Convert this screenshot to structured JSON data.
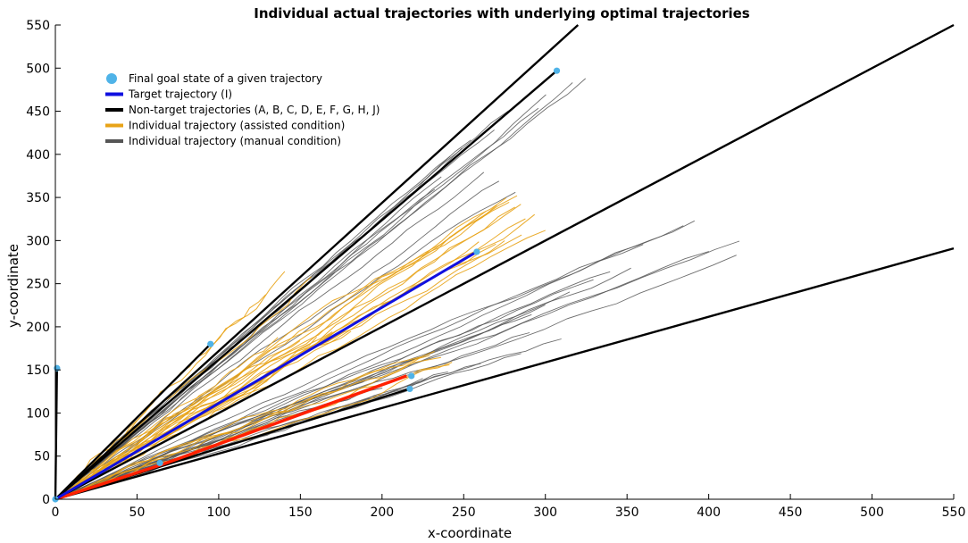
{
  "chart_data": {
    "type": "line",
    "title": "Individual actual trajectories with underlying optimal trajectories",
    "xlabel": "x-coordinate",
    "ylabel": "y-coordinate",
    "xlim": [
      0,
      550
    ],
    "ylim": [
      0,
      550
    ],
    "xticks": [
      0,
      50,
      100,
      150,
      200,
      250,
      300,
      350,
      400,
      450,
      500,
      550
    ],
    "yticks": [
      0,
      50,
      100,
      150,
      200,
      250,
      300,
      350,
      400,
      450,
      500,
      550
    ],
    "grid": false,
    "legend_position": "top-left",
    "legend": [
      {
        "label": "Final goal state of a given trajectory",
        "marker": "circle",
        "color": "#4fb3e8"
      },
      {
        "label": "Target trajectory (I)",
        "marker": "line",
        "color": "#1010e0"
      },
      {
        "label": "Non-target trajectories (A, B, C, D, E, F, G, H, J)",
        "marker": "line",
        "color": "#000000"
      },
      {
        "label": "Individual trajectory (assisted condition)",
        "marker": "line",
        "color": "#e8a317"
      },
      {
        "label": "Individual trajectory (manual condition)",
        "marker": "line",
        "color": "#555555"
      }
    ],
    "colors": {
      "goal": "#4fb3e8",
      "target": "#1010e0",
      "nontarget": "#000000",
      "assisted": "#e8a317",
      "manual": "#555555",
      "highlight": "#ff2000"
    },
    "optimal_trajectories": [
      {
        "x": [
          0,
          1
        ],
        "y": [
          0,
          152
        ]
      },
      {
        "x": [
          0,
          95
        ],
        "y": [
          0,
          180
        ]
      },
      {
        "x": [
          0,
          320
        ],
        "y": [
          0,
          550
        ]
      },
      {
        "x": [
          0,
          307
        ],
        "y": [
          0,
          497
        ]
      },
      {
        "x": [
          0,
          550
        ],
        "y": [
          0,
          550
        ]
      },
      {
        "x": [
          0,
          550
        ],
        "y": [
          0,
          291
        ]
      },
      {
        "x": [
          0,
          217
        ],
        "y": [
          0,
          128
        ]
      }
    ],
    "target_trajectory": {
      "x": [
        0,
        258
      ],
      "y": [
        0,
        287
      ]
    },
    "highlight_trajectory": {
      "x": [
        0,
        65,
        215
      ],
      "y": [
        0,
        40,
        143
      ]
    },
    "goal_states": [
      {
        "x": 1,
        "y": 152
      },
      {
        "x": 95,
        "y": 180
      },
      {
        "x": 307,
        "y": 497
      },
      {
        "x": 258,
        "y": 287
      },
      {
        "x": 217,
        "y": 128
      },
      {
        "x": 218,
        "y": 143
      },
      {
        "x": 64,
        "y": 42
      },
      {
        "x": 0,
        "y": 0
      }
    ],
    "manual_endpoints": [
      [
        325,
        487
      ],
      [
        318,
        480
      ],
      [
        300,
        470
      ],
      [
        295,
        455
      ],
      [
        280,
        445
      ],
      [
        268,
        430
      ],
      [
        253,
        420
      ],
      [
        250,
        405
      ],
      [
        243,
        395
      ],
      [
        262,
        380
      ],
      [
        272,
        368
      ],
      [
        282,
        355
      ],
      [
        238,
        370
      ],
      [
        232,
        360
      ],
      [
        392,
        320
      ],
      [
        385,
        315
      ],
      [
        420,
        293
      ],
      [
        400,
        288
      ],
      [
        417,
        283
      ],
      [
        360,
        295
      ],
      [
        352,
        270
      ],
      [
        340,
        262
      ],
      [
        330,
        252
      ],
      [
        315,
        240
      ],
      [
        300,
        225
      ],
      [
        292,
        212
      ],
      [
        290,
        195
      ],
      [
        310,
        185
      ],
      [
        285,
        170
      ],
      [
        260,
        160
      ],
      [
        240,
        150
      ],
      [
        225,
        140
      ],
      [
        200,
        130
      ],
      [
        180,
        120
      ],
      [
        160,
        112
      ]
    ],
    "assisted_endpoints": [
      [
        283,
        348
      ],
      [
        278,
        344
      ],
      [
        281,
        340
      ],
      [
        276,
        350
      ],
      [
        285,
        345
      ],
      [
        270,
        342
      ],
      [
        265,
        330
      ],
      [
        295,
        325
      ],
      [
        290,
        318
      ],
      [
        300,
        312
      ],
      [
        285,
        308
      ],
      [
        275,
        300
      ],
      [
        270,
        295
      ],
      [
        262,
        290
      ],
      [
        240,
        163
      ],
      [
        243,
        158
      ],
      [
        235,
        170
      ],
      [
        232,
        172
      ],
      [
        229,
        168
      ],
      [
        225,
        160
      ],
      [
        180,
        198
      ],
      [
        170,
        193
      ],
      [
        160,
        188
      ],
      [
        150,
        183
      ],
      [
        140,
        177
      ],
      [
        155,
        262
      ],
      [
        145,
        255
      ],
      [
        130,
        235
      ]
    ]
  }
}
